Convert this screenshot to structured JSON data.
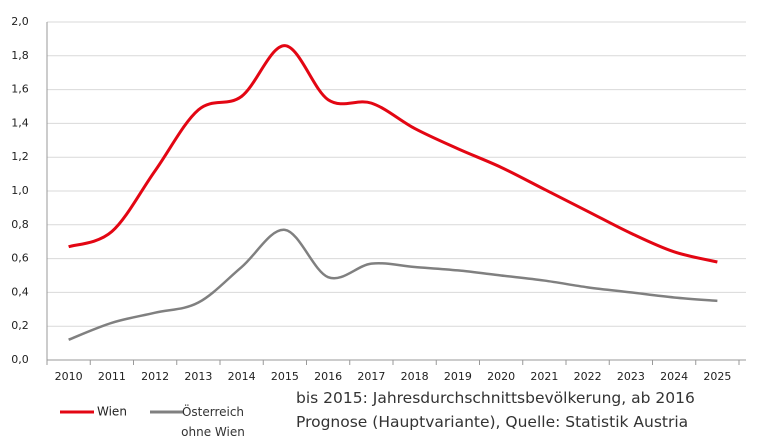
{
  "chart_data": {
    "type": "line",
    "categories": [
      "2010",
      "2011",
      "2012",
      "2013",
      "2014",
      "2015",
      "2016",
      "2017",
      "2018",
      "2019",
      "2020",
      "2021",
      "2022",
      "2023",
      "2024",
      "2025"
    ],
    "series": [
      {
        "name": "Wien",
        "color": "#e30613",
        "values": [
          0.67,
          0.76,
          1.12,
          1.48,
          1.56,
          1.86,
          1.54,
          1.52,
          1.37,
          1.25,
          1.14,
          1.01,
          0.88,
          0.75,
          0.64,
          0.58
        ]
      },
      {
        "name": "Österreich ohne Wien",
        "color": "#808080",
        "values": [
          0.12,
          0.22,
          0.28,
          0.34,
          0.55,
          0.77,
          0.49,
          0.57,
          0.55,
          0.53,
          0.5,
          0.47,
          0.43,
          0.4,
          0.37,
          0.35
        ]
      }
    ],
    "ylim": [
      0,
      2
    ],
    "yticks": [
      {
        "value": 0,
        "label": "0,0"
      },
      {
        "value": 0.2,
        "label": "0,2"
      },
      {
        "value": 0.4,
        "label": "0,4"
      },
      {
        "value": 0.6,
        "label": "0,6"
      },
      {
        "value": 0.8,
        "label": "0,8"
      },
      {
        "value": 1,
        "label": "1,0"
      },
      {
        "value": 1.2,
        "label": "1,2"
      },
      {
        "value": 1.4,
        "label": "1,4"
      },
      {
        "value": 1.6,
        "label": "1,6"
      },
      {
        "value": 1.8,
        "label": "1,8"
      },
      {
        "value": 2,
        "label": "2,0"
      }
    ],
    "grid": true,
    "annotation": "bis 2015: Jahresdurchschnittsbevölkerung, ab 2016 Prognose (Hauptvariante), Quelle: Statistik Austria"
  }
}
